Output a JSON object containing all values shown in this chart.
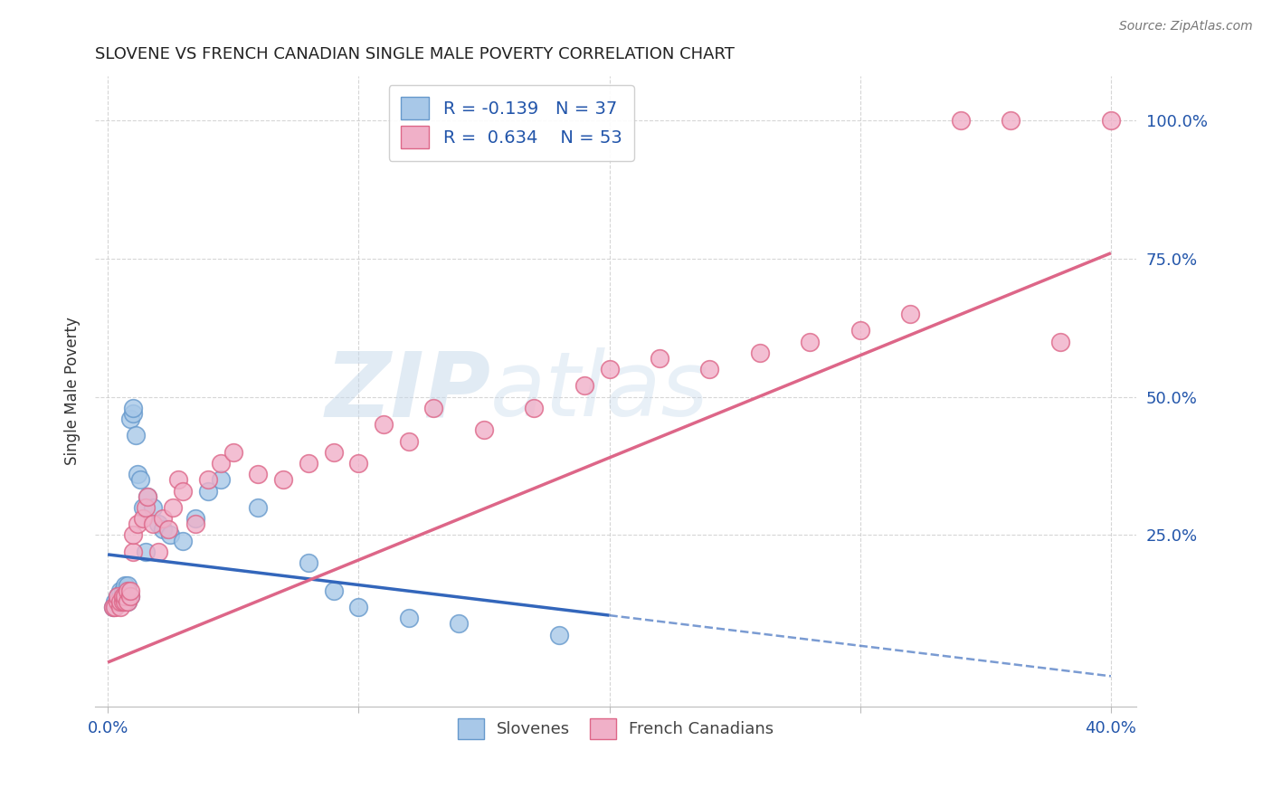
{
  "title": "SLOVENE VS FRENCH CANADIAN SINGLE MALE POVERTY CORRELATION CHART",
  "source": "Source: ZipAtlas.com",
  "ylabel": "Single Male Poverty",
  "ytick_labels": [
    "100.0%",
    "75.0%",
    "50.0%",
    "25.0%"
  ],
  "ytick_values": [
    1.0,
    0.75,
    0.5,
    0.25
  ],
  "xtick_values": [
    0.0,
    0.1,
    0.2,
    0.3,
    0.4
  ],
  "xtick_labels": [
    "0.0%",
    "",
    "",
    "",
    "40.0%"
  ],
  "xlim": [
    -0.005,
    0.41
  ],
  "ylim": [
    -0.06,
    1.08
  ],
  "slovene_color": "#a8c8e8",
  "french_color": "#f0b0c8",
  "slovene_edge": "#6699cc",
  "french_edge": "#dd6688",
  "line_blue": "#3366bb",
  "line_pink": "#dd6688",
  "watermark_zip": "ZIP",
  "watermark_atlas": "atlas",
  "legend_R_slovene": "-0.139",
  "legend_N_slovene": "37",
  "legend_R_french": "0.634",
  "legend_N_french": "53",
  "slovene_x": [
    0.002,
    0.003,
    0.004,
    0.005,
    0.005,
    0.006,
    0.006,
    0.007,
    0.007,
    0.008,
    0.008,
    0.008,
    0.009,
    0.009,
    0.01,
    0.01,
    0.011,
    0.012,
    0.013,
    0.014,
    0.015,
    0.016,
    0.018,
    0.02,
    0.022,
    0.025,
    0.03,
    0.035,
    0.04,
    0.045,
    0.06,
    0.08,
    0.09,
    0.1,
    0.12,
    0.14,
    0.18
  ],
  "slovene_y": [
    0.12,
    0.13,
    0.14,
    0.14,
    0.15,
    0.13,
    0.15,
    0.16,
    0.14,
    0.13,
    0.15,
    0.16,
    0.14,
    0.46,
    0.47,
    0.48,
    0.43,
    0.36,
    0.35,
    0.3,
    0.22,
    0.32,
    0.3,
    0.27,
    0.26,
    0.25,
    0.24,
    0.28,
    0.33,
    0.35,
    0.3,
    0.2,
    0.15,
    0.12,
    0.1,
    0.09,
    0.07
  ],
  "french_x": [
    0.002,
    0.003,
    0.004,
    0.004,
    0.005,
    0.005,
    0.006,
    0.006,
    0.007,
    0.007,
    0.008,
    0.008,
    0.009,
    0.009,
    0.01,
    0.01,
    0.012,
    0.014,
    0.015,
    0.016,
    0.018,
    0.02,
    0.022,
    0.024,
    0.026,
    0.028,
    0.03,
    0.035,
    0.04,
    0.045,
    0.05,
    0.06,
    0.07,
    0.08,
    0.09,
    0.1,
    0.11,
    0.12,
    0.13,
    0.15,
    0.17,
    0.19,
    0.2,
    0.22,
    0.24,
    0.26,
    0.28,
    0.3,
    0.32,
    0.34,
    0.36,
    0.38,
    0.4
  ],
  "french_y": [
    0.12,
    0.12,
    0.13,
    0.14,
    0.12,
    0.13,
    0.13,
    0.14,
    0.13,
    0.14,
    0.13,
    0.15,
    0.14,
    0.15,
    0.22,
    0.25,
    0.27,
    0.28,
    0.3,
    0.32,
    0.27,
    0.22,
    0.28,
    0.26,
    0.3,
    0.35,
    0.33,
    0.27,
    0.35,
    0.38,
    0.4,
    0.36,
    0.35,
    0.38,
    0.4,
    0.38,
    0.45,
    0.42,
    0.48,
    0.44,
    0.48,
    0.52,
    0.55,
    0.57,
    0.55,
    0.58,
    0.6,
    0.62,
    0.65,
    1.0,
    1.0,
    0.6,
    1.0
  ]
}
